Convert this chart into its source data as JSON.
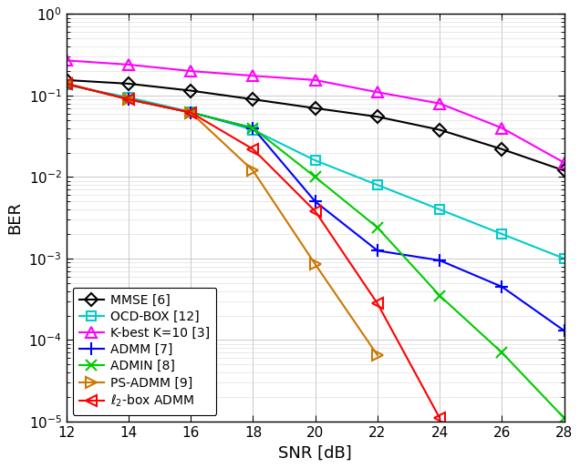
{
  "snr": [
    12,
    14,
    16,
    18,
    20,
    22,
    24,
    26,
    28
  ],
  "MMSE": [
    0.155,
    0.14,
    0.115,
    0.09,
    0.07,
    0.055,
    0.038,
    0.022,
    0.012
  ],
  "OCD_BOX": [
    0.135,
    0.095,
    0.063,
    0.038,
    0.016,
    0.008,
    0.004,
    0.002,
    0.001
  ],
  "K_best": [
    0.27,
    0.24,
    0.2,
    0.175,
    0.155,
    0.11,
    0.08,
    0.04,
    0.015
  ],
  "ADMM": [
    0.14,
    0.09,
    0.062,
    0.04,
    0.005,
    0.00125,
    0.00095,
    0.00045,
    0.00013
  ],
  "ADMIN": [
    0.14,
    0.09,
    0.062,
    0.04,
    0.01,
    0.0024,
    0.00035,
    7e-05,
    1.1e-05
  ],
  "PS_ADMM": [
    0.14,
    0.09,
    0.062,
    0.012,
    0.00085,
    6.5e-05,
    null,
    null,
    null
  ],
  "l2_box_ADMM": [
    0.14,
    0.09,
    0.062,
    0.022,
    0.0038,
    0.00028,
    1.1e-05,
    null,
    null
  ],
  "colors": {
    "MMSE": "#000000",
    "OCD_BOX": "#00cccc",
    "K_best": "#ff00ff",
    "ADMM": "#0000ff",
    "ADMIN": "#00cc00",
    "PS_ADMM": "#cc7700",
    "l2_box_ADMM": "#ff0000"
  },
  "legend_labels": {
    "MMSE": "MMSE [6]",
    "OCD_BOX": "OCD-BOX [12]",
    "K_best": "K-best K=10 [3]",
    "ADMM": "ADMM [7]",
    "ADMIN": "ADMIN [8]",
    "PS_ADMM": "PS-ADMM [9]",
    "l2_box_ADMM": "$\\ell_2$-box ADMM"
  },
  "xlabel": "SNR [dB]",
  "ylabel": "BER",
  "ylim_low": 1e-05,
  "ylim_high": 1.0,
  "xlim": [
    12,
    28
  ],
  "xticks": [
    12,
    14,
    16,
    18,
    20,
    22,
    24,
    26,
    28
  ]
}
